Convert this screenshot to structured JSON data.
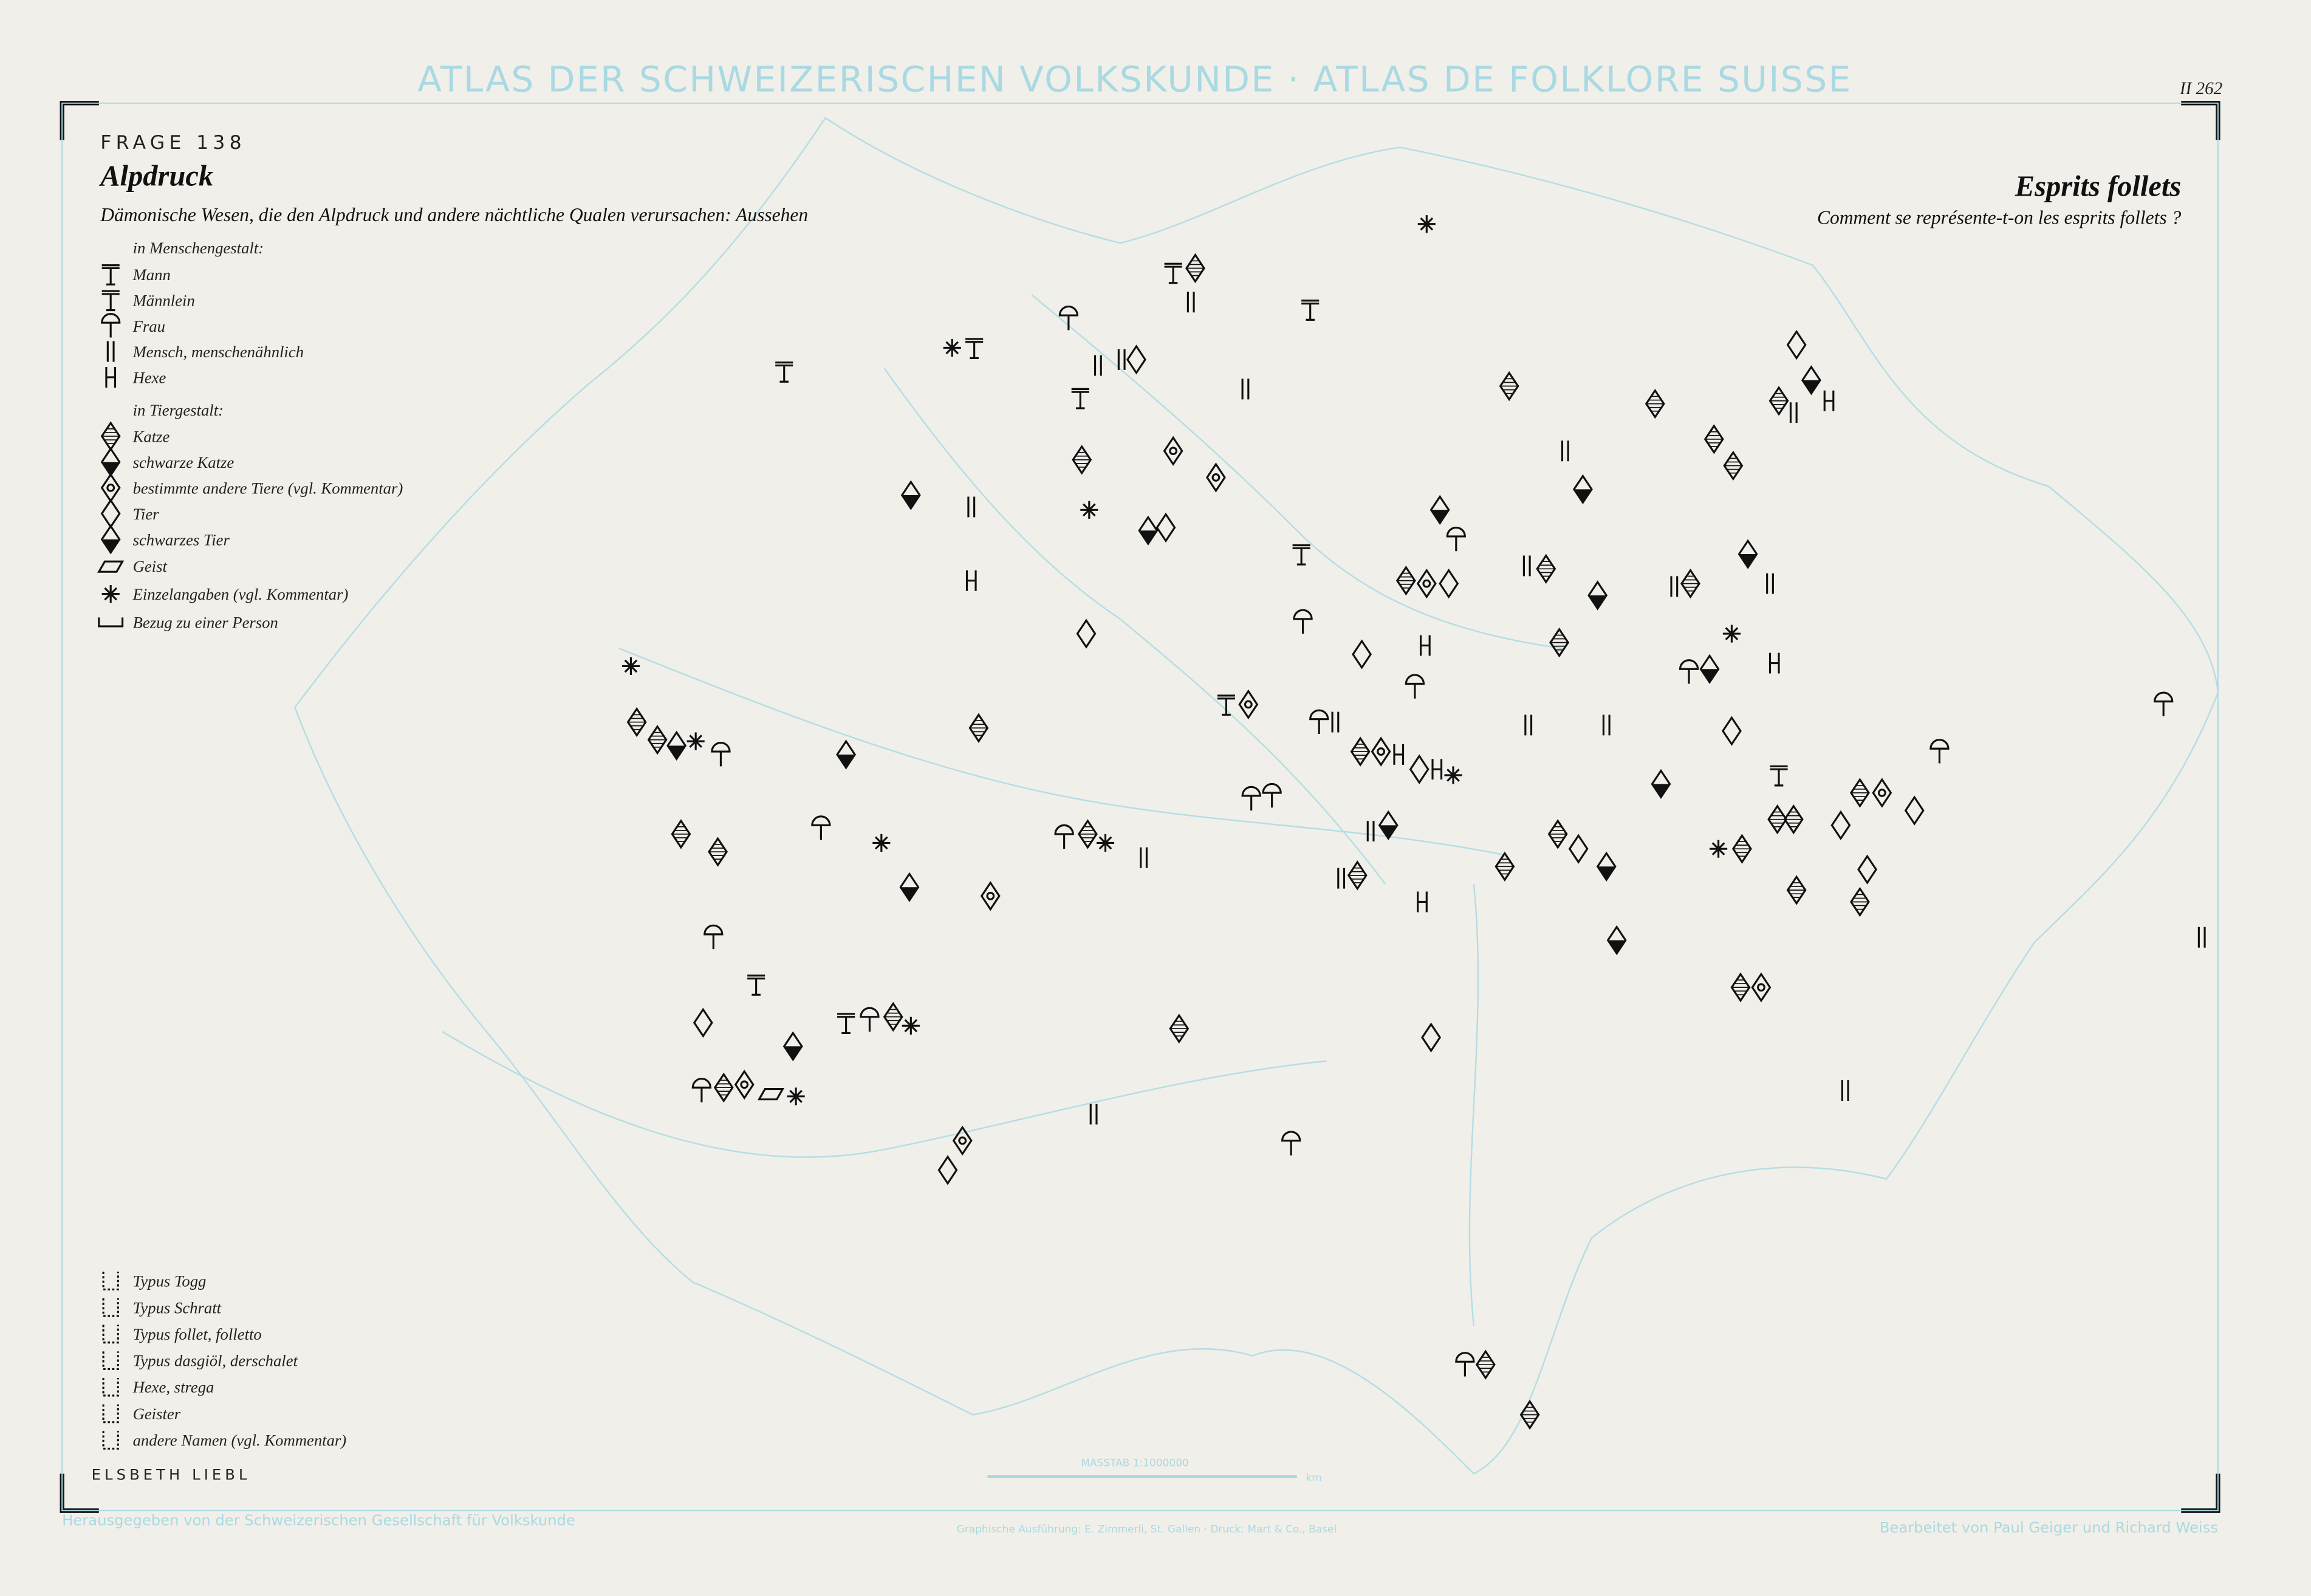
{
  "atlas_title": "ATLAS DER SCHWEIZERISCHEN VOLKSKUNDE · ATLAS DE FOLKLORE SUISSE",
  "map_number": "II 262",
  "question": "FRAGE 138",
  "title_de": "Alpdruck",
  "subtitle_de": "Dämonische Wesen, die den Alpdruck und andere nächtliche Qualen verursachen: Aussehen",
  "title_fr": "Esprits follets",
  "subtitle_fr": "Comment se représente-t-on les esprits follets ?",
  "legend": {
    "human_heading": "in Menschengestalt:",
    "human": [
      "Mann",
      "Männlein",
      "Frau",
      "Mensch, menschenähnlich",
      "Hexe"
    ],
    "animal_heading": "in Tiergestalt:",
    "animal": [
      "Katze",
      "schwarze Katze",
      "bestimmte andere Tiere (vgl. Kommentar)",
      "Tier",
      "schwarzes Tier"
    ],
    "other": [
      "Geist",
      "Einzelangaben (vgl. Kommentar)",
      "Bezug zu einer Person"
    ]
  },
  "types": [
    "Typus Togg",
    "Typus Schratt",
    "Typus follet, folletto",
    "Typus dasgiöl, derschalet",
    "Hexe, strega",
    "Geister",
    "andere Namen (vgl. Kommentar)"
  ],
  "author": "ELSBETH LIEBL",
  "scale": "MASSTAB 1:1000000",
  "scale_unit": "km",
  "footer_left": "Herausgegeben von der Schweizerischen Gesellschaft für Volkskunde",
  "footer_center": "Graphische Ausführung: E. Zimmerli, St. Gallen · Druck: Mart & Co., Basel",
  "footer_right": "Bearbeitet von Paul Geiger und Richard Weiss"
}
